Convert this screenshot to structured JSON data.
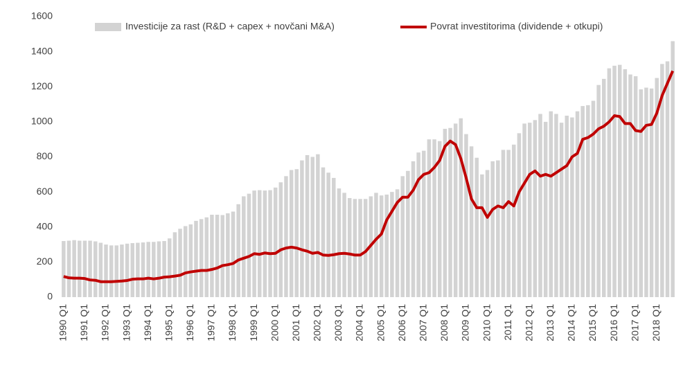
{
  "chart_data": {
    "type": "bar-line",
    "categories": [
      "1990 Q1",
      null,
      null,
      null,
      "1991 Q1",
      null,
      null,
      null,
      "1992 Q1",
      null,
      null,
      null,
      "1993 Q1",
      null,
      null,
      null,
      "1994 Q1",
      null,
      null,
      null,
      "1995 Q1",
      null,
      null,
      null,
      "1996 Q1",
      null,
      null,
      null,
      "1997 Q1",
      null,
      null,
      null,
      "1998 Q1",
      null,
      null,
      null,
      "1999 Q1",
      null,
      null,
      null,
      "2000 Q1",
      null,
      null,
      null,
      "2001 Q1",
      null,
      null,
      null,
      "2002 Q1",
      null,
      null,
      null,
      "2003 Q1",
      null,
      null,
      null,
      "2004 Q1",
      null,
      null,
      null,
      "2005 Q1",
      null,
      null,
      null,
      "2006 Q1",
      null,
      null,
      null,
      "2007 Q1",
      null,
      null,
      null,
      "2008 Q1",
      null,
      null,
      null,
      "2009 Q1",
      null,
      null,
      null,
      "2010 Q1",
      null,
      null,
      null,
      "2011 Q1",
      null,
      null,
      null,
      "2012 Q1",
      null,
      null,
      null,
      "2013 Q1",
      null,
      null,
      null,
      "2014 Q1",
      null,
      null,
      null,
      "2015 Q1",
      null,
      null,
      null,
      "2016 Q1",
      null,
      null,
      null,
      "2017 Q1",
      null,
      null,
      null,
      "2018 Q1",
      null,
      null,
      null
    ],
    "series": [
      {
        "name": "Investicije za rast (R&D + capex + novčani M&A)",
        "color": "#d3d3d3",
        "kind": "bar",
        "values": [
          320,
          322,
          325,
          322,
          322,
          322,
          318,
          310,
          300,
          295,
          295,
          300,
          305,
          308,
          310,
          312,
          315,
          315,
          318,
          320,
          335,
          370,
          390,
          405,
          415,
          435,
          445,
          455,
          470,
          470,
          468,
          478,
          488,
          530,
          575,
          590,
          608,
          610,
          608,
          610,
          625,
          655,
          690,
          725,
          730,
          780,
          810,
          800,
          815,
          740,
          710,
          680,
          620,
          595,
          565,
          560,
          560,
          560,
          575,
          595,
          580,
          585,
          600,
          615,
          690,
          720,
          775,
          825,
          835,
          900,
          900,
          890,
          960,
          965,
          990,
          1020,
          930,
          860,
          795,
          700,
          725,
          775,
          780,
          840,
          840,
          870,
          935,
          990,
          995,
          1010,
          1045,
          1000,
          1060,
          1045,
          995,
          1035,
          1025,
          1060,
          1090,
          1095,
          1120,
          1210,
          1245,
          1305,
          1320,
          1325,
          1300,
          1270,
          1260,
          1185,
          1195,
          1190,
          1250,
          1330,
          1345,
          1460
        ]
      },
      {
        "name": "Povrat investitorima (dividende + otkupi)",
        "color": "#c00000",
        "kind": "line",
        "values": [
          118,
          110,
          108,
          108,
          106,
          98,
          96,
          88,
          88,
          88,
          90,
          92,
          95,
          102,
          104,
          104,
          108,
          104,
          108,
          114,
          116,
          120,
          125,
          138,
          144,
          148,
          152,
          152,
          158,
          166,
          180,
          185,
          192,
          212,
          222,
          232,
          248,
          244,
          252,
          248,
          250,
          270,
          280,
          285,
          280,
          270,
          262,
          250,
          255,
          240,
          238,
          242,
          248,
          250,
          246,
          240,
          240,
          260,
          295,
          330,
          360,
          440,
          490,
          540,
          570,
          570,
          610,
          670,
          700,
          710,
          740,
          780,
          860,
          890,
          870,
          790,
          680,
          560,
          510,
          510,
          455,
          500,
          520,
          510,
          545,
          520,
          600,
          650,
          700,
          720,
          690,
          700,
          690,
          710,
          730,
          750,
          800,
          820,
          900,
          910,
          930,
          960,
          975,
          1000,
          1035,
          1030,
          990,
          990,
          950,
          945,
          980,
          985,
          1050,
          1150,
          1220,
          1290
        ]
      }
    ],
    "ylim": [
      0,
      1600
    ],
    "yticks": [
      0,
      200,
      400,
      600,
      800,
      1000,
      1200,
      1400,
      1600
    ],
    "grid": false
  }
}
